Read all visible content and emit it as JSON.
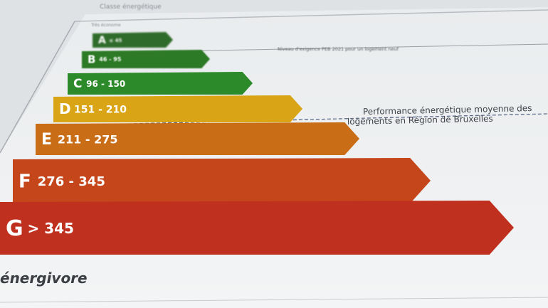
{
  "header": {
    "title": "Classe énergétique"
  },
  "scale": {
    "top_label": "Très économe",
    "bottom_label": "énergivore",
    "classes": [
      {
        "letter": "A",
        "range": "≤ 45",
        "color": "#2f6b2a"
      },
      {
        "letter": "B",
        "range": "46 - 95",
        "color": "#2d7a26"
      },
      {
        "letter": "C",
        "range": "96 - 150",
        "color": "#2c8a2a"
      },
      {
        "letter": "D",
        "range": "151 - 210",
        "color": "#d9a516"
      },
      {
        "letter": "E",
        "range": "211 - 275",
        "color": "#c96d17"
      },
      {
        "letter": "F",
        "range": "276 - 345",
        "color": "#c5461b"
      },
      {
        "letter": "G",
        "range": "> 345",
        "color": "#c0301e"
      }
    ]
  },
  "annotations": {
    "requirement": "Niveau d'exigence PEB 2021 pour un logement neuf",
    "average_line1": "Performance énergétique moyenne des",
    "average_line2": "logements en Région de Bruxelles"
  }
}
